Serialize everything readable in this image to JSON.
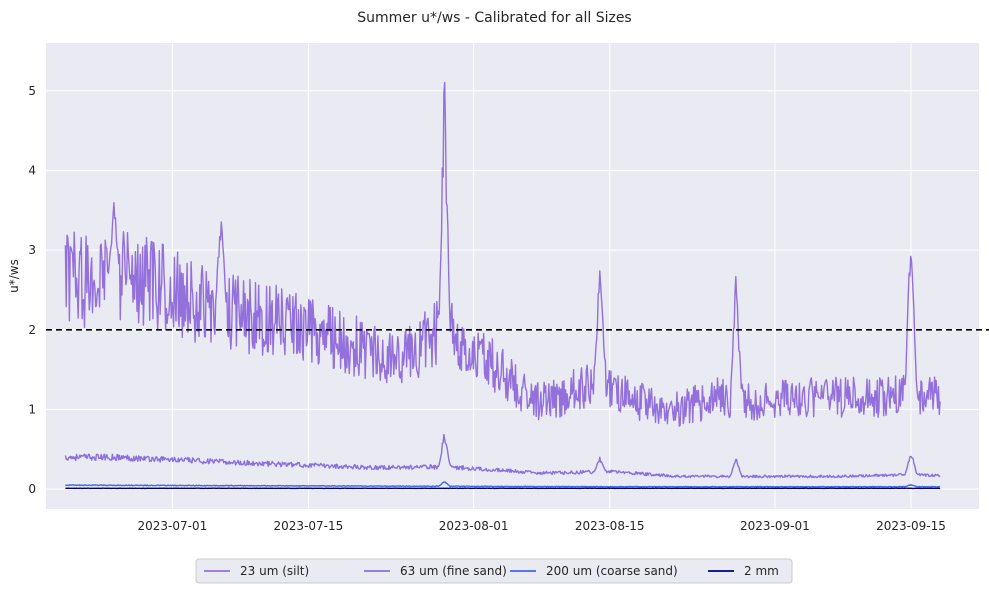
{
  "chart_data": {
    "type": "line",
    "title": "Summer u*/ws - Calibrated for all Sizes",
    "xlabel": "",
    "ylabel": "u*/ws",
    "x_range": [
      "2023-06-20",
      "2023-09-20"
    ],
    "xlim": [
      "2023-06-18",
      "2023-09-22"
    ],
    "ylim": [
      -0.25,
      5.6
    ],
    "x_ticks": [
      "2023-07-01",
      "2023-07-15",
      "2023-08-01",
      "2023-08-15",
      "2023-09-01",
      "2023-09-15"
    ],
    "y_ticks": [
      0,
      1,
      2,
      3,
      4,
      5
    ],
    "grid": true,
    "background": "#eaeaf2",
    "threshold": {
      "y": 2,
      "color": "#000000",
      "style": "dashed"
    },
    "legend_position": "bottom-center",
    "series": [
      {
        "name": "23 um (silt)",
        "color": "#9370db",
        "points": [
          [
            "2023-06-20",
            2.7
          ],
          [
            "2023-06-22",
            2.6
          ],
          [
            "2023-06-25",
            2.7
          ],
          [
            "2023-06-28",
            2.6
          ],
          [
            "2023-07-01",
            2.5
          ],
          [
            "2023-07-05",
            2.25
          ],
          [
            "2023-07-08",
            2.2
          ],
          [
            "2023-07-12",
            2.1
          ],
          [
            "2023-07-15",
            2.0
          ],
          [
            "2023-07-18",
            1.9
          ],
          [
            "2023-07-20",
            1.8
          ],
          [
            "2023-07-23",
            1.6
          ],
          [
            "2023-07-26",
            1.75
          ],
          [
            "2023-07-29",
            2.0
          ],
          [
            "2023-08-01",
            1.75
          ],
          [
            "2023-08-04",
            1.45
          ],
          [
            "2023-08-07",
            1.1
          ],
          [
            "2023-08-10",
            1.15
          ],
          [
            "2023-08-14",
            1.4
          ],
          [
            "2023-08-18",
            1.1
          ],
          [
            "2023-08-22",
            1.0
          ],
          [
            "2023-08-26",
            1.15
          ],
          [
            "2023-08-30",
            1.1
          ],
          [
            "2023-09-03",
            1.15
          ],
          [
            "2023-09-07",
            1.15
          ],
          [
            "2023-09-11",
            1.15
          ],
          [
            "2023-09-15",
            1.2
          ],
          [
            "2023-09-18",
            1.15
          ]
        ],
        "peaks": [
          [
            "2023-06-25",
            3.65
          ],
          [
            "2023-07-06",
            3.58
          ],
          [
            "2023-07-29",
            5.35
          ],
          [
            "2023-08-14",
            3.0
          ],
          [
            "2023-08-28",
            2.87
          ],
          [
            "2023-09-15",
            3.63
          ]
        ]
      },
      {
        "name": "63 um (fine sand)",
        "color": "#8a6fe0",
        "points": [
          [
            "2023-06-20",
            0.4
          ],
          [
            "2023-06-25",
            0.4
          ],
          [
            "2023-07-01",
            0.37
          ],
          [
            "2023-07-08",
            0.33
          ],
          [
            "2023-07-15",
            0.3
          ],
          [
            "2023-07-22",
            0.27
          ],
          [
            "2023-07-29",
            0.28
          ],
          [
            "2023-08-01",
            0.26
          ],
          [
            "2023-08-08",
            0.2
          ],
          [
            "2023-08-15",
            0.22
          ],
          [
            "2023-08-22",
            0.16
          ],
          [
            "2023-09-01",
            0.16
          ],
          [
            "2023-09-08",
            0.16
          ],
          [
            "2023-09-15",
            0.18
          ],
          [
            "2023-09-18",
            0.17
          ]
        ],
        "peaks": [
          [
            "2023-07-29",
            0.76
          ],
          [
            "2023-08-14",
            0.41
          ],
          [
            "2023-08-28",
            0.4
          ],
          [
            "2023-09-15",
            0.5
          ]
        ]
      },
      {
        "name": "200 um (coarse sand)",
        "color": "#4169e1",
        "points": [
          [
            "2023-06-20",
            0.05
          ],
          [
            "2023-07-15",
            0.04
          ],
          [
            "2023-08-15",
            0.03
          ],
          [
            "2023-09-18",
            0.03
          ]
        ],
        "peaks": [
          [
            "2023-07-29",
            0.1
          ],
          [
            "2023-09-15",
            0.06
          ]
        ]
      },
      {
        "name": "2 mm",
        "color": "#00007a",
        "points": [
          [
            "2023-06-20",
            0.01
          ],
          [
            "2023-09-18",
            0.01
          ]
        ],
        "peaks": []
      }
    ]
  }
}
